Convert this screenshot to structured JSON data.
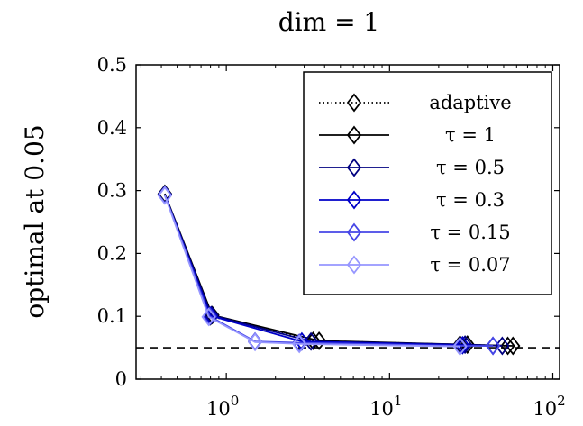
{
  "chart_data": {
    "type": "line",
    "title": "dim = 1",
    "xlabel": "",
    "ylabel": "optimal at 0.05",
    "xscale": "log",
    "xlim": [
      0.28,
      110
    ],
    "ylim": [
      0,
      0.5
    ],
    "yticks": [
      {
        "value": 0,
        "label": "0"
      },
      {
        "value": 0.1,
        "label": "0.1"
      },
      {
        "value": 0.2,
        "label": "0.2"
      },
      {
        "value": 0.3,
        "label": "0.3"
      },
      {
        "value": 0.4,
        "label": "0.4"
      },
      {
        "value": 0.5,
        "label": "0.5"
      }
    ],
    "xticks": [
      {
        "value": 1,
        "base": "10",
        "exp": "0"
      },
      {
        "value": 10,
        "base": "10",
        "exp": "1"
      },
      {
        "value": 100,
        "base": "10",
        "exp": "2"
      }
    ],
    "reference_line": {
      "y": 0.05,
      "style": "dashed",
      "color": "#000000"
    },
    "legend_position": "top-right",
    "series": [
      {
        "name": "adaptive",
        "color": "#000000",
        "style": "dotted",
        "points": [
          [
            0.42,
            0.293
          ],
          [
            0.8,
            0.1
          ],
          [
            3.4,
            0.061
          ],
          [
            27,
            0.055
          ],
          [
            53,
            0.053
          ]
        ]
      },
      {
        "name": "τ = 1",
        "color": "#000000",
        "style": "solid",
        "points": [
          [
            0.42,
            0.295
          ],
          [
            0.82,
            0.102
          ],
          [
            3.7,
            0.061
          ],
          [
            30,
            0.055
          ],
          [
            57,
            0.053
          ]
        ]
      },
      {
        "name": "τ = 0.5",
        "color": "#000080",
        "style": "solid",
        "points": [
          [
            0.42,
            0.294
          ],
          [
            0.81,
            0.102
          ],
          [
            3.3,
            0.06
          ],
          [
            29,
            0.055
          ],
          [
            49,
            0.053
          ]
        ]
      },
      {
        "name": "τ = 0.3",
        "color": "#0000c8",
        "style": "solid",
        "points": [
          [
            0.42,
            0.293
          ],
          [
            0.8,
            0.101
          ],
          [
            2.9,
            0.06
          ],
          [
            28,
            0.054
          ],
          [
            43,
            0.053
          ]
        ]
      },
      {
        "name": "τ = 0.15",
        "color": "#4646e6",
        "style": "solid",
        "points": [
          [
            0.42,
            0.293
          ],
          [
            0.79,
            0.1
          ],
          [
            1.5,
            0.06
          ],
          [
            2.8,
            0.058
          ],
          [
            27,
            0.053
          ],
          [
            43,
            0.053
          ]
        ]
      },
      {
        "name": "τ = 0.07",
        "color": "#9696ff",
        "style": "solid",
        "points": [
          [
            0.42,
            0.292
          ],
          [
            0.78,
            0.099
          ],
          [
            1.5,
            0.059
          ],
          [
            2.8,
            0.056
          ],
          [
            27,
            0.052
          ]
        ]
      }
    ]
  }
}
